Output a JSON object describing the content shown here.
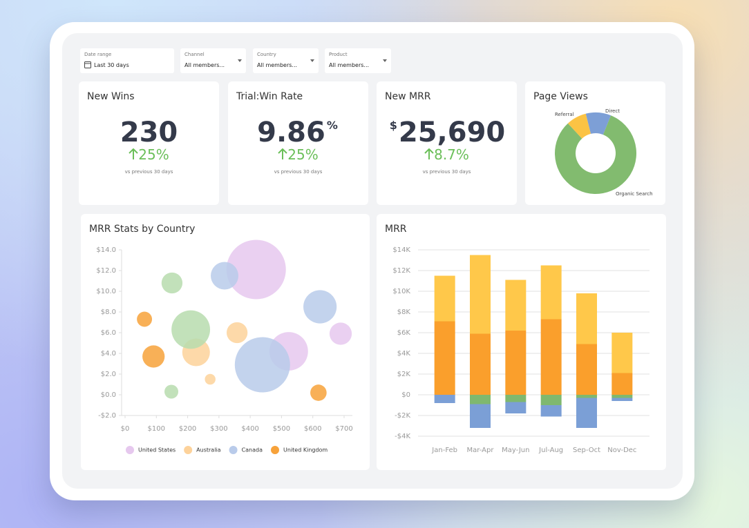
{
  "filters": [
    {
      "label": "Date range",
      "value": "Last 30 days"
    },
    {
      "label": "Channel",
      "value": "All members..."
    },
    {
      "label": "Country",
      "value": "All members..."
    },
    {
      "label": "Product",
      "value": "All members..."
    }
  ],
  "kpis": [
    {
      "title": "New Wins",
      "value": "230",
      "change": "25%",
      "note": "vs previous 30 days"
    },
    {
      "title": "Trial:Win Rate",
      "value": "9.86",
      "unit": "%",
      "change": "25%",
      "note": "vs previous 30 days"
    },
    {
      "title": "New MRR",
      "prefix": "$",
      "value": "25,690",
      "change": "8.7%",
      "note": "vs previous 30 days"
    }
  ],
  "chart_data": [
    {
      "type": "pie",
      "title": "Page Views",
      "donut": true,
      "categories": [
        "Direct",
        "Organic Search",
        "Referral"
      ],
      "values": [
        10,
        82,
        8
      ],
      "colors": [
        "#7d9fd6",
        "#82bb6f",
        "#fbc344"
      ]
    },
    {
      "type": "bubble",
      "title": "MRR Stats by Country",
      "xlim": [
        0,
        700
      ],
      "ylim": [
        -2,
        14
      ],
      "xticks": [
        {
          "value": 0,
          "label": "$0"
        },
        {
          "value": 100,
          "label": "$100"
        },
        {
          "value": 200,
          "label": "$200"
        },
        {
          "value": 300,
          "label": "$300"
        },
        {
          "value": 400,
          "label": "$400"
        },
        {
          "value": 500,
          "label": "$500"
        },
        {
          "value": 600,
          "label": "$600"
        },
        {
          "value": 700,
          "label": "$700"
        }
      ],
      "yticks": [
        {
          "value": -2,
          "label": "-$2.0"
        },
        {
          "value": 0,
          "label": "$0.0"
        },
        {
          "value": 2,
          "label": "$2.0"
        },
        {
          "value": 4,
          "label": "$4.0"
        },
        {
          "value": 6,
          "label": "$6.0"
        },
        {
          "value": 8,
          "label": "$8.0"
        },
        {
          "value": 10,
          "label": "$10.0"
        },
        {
          "value": 12,
          "label": "$12.0"
        },
        {
          "value": 14,
          "label": "$14.0"
        }
      ],
      "series": [
        {
          "name": "United States",
          "color": "#e6c8ee",
          "x": [
            419,
            523,
            689
          ],
          "y": [
            12.1,
            4.2,
            5.9
          ],
          "size": [
            185,
            78,
            26
          ]
        },
        {
          "name": "Australia",
          "color": "#fdd29a",
          "x": [
            358,
            227,
            272
          ],
          "y": [
            6.0,
            4.1,
            1.5
          ],
          "size": [
            23,
            40,
            6
          ]
        },
        {
          "name": "Canada",
          "color": "#b9cbea",
          "x": [
            318,
            623,
            439
          ],
          "y": [
            11.5,
            8.5,
            2.9
          ],
          "size": [
            40,
            58,
            160
          ]
        },
        {
          "name": "United Kingdom",
          "color": "#f7a23a",
          "x": [
            62,
            91,
            618
          ],
          "y": [
            7.3,
            3.7,
            0.2
          ],
          "size": [
            12,
            26,
            14
          ]
        },
        {
          "color": "#b7dcae",
          "x": [
            150,
            210,
            148
          ],
          "y": [
            10.8,
            6.3,
            0.3
          ],
          "size": [
            23,
            78,
            10
          ]
        }
      ]
    },
    {
      "type": "bar",
      "title": "MRR",
      "stacked": true,
      "grid": true,
      "categories": [
        "Jan-Feb",
        "Mar-Apr",
        "May-Jun",
        "Jul-Aug",
        "Sep-Oct",
        "Nov-Dec"
      ],
      "ylim": [
        -4000,
        14000
      ],
      "yticks": [
        {
          "value": -4000,
          "label": "-$4K"
        },
        {
          "value": -2000,
          "label": "-$2K"
        },
        {
          "value": 0,
          "label": "$0"
        },
        {
          "value": 2000,
          "label": "$2K"
        },
        {
          "value": 4000,
          "label": "$4K"
        },
        {
          "value": 6000,
          "label": "$6K"
        },
        {
          "value": 8000,
          "label": "$8K"
        },
        {
          "value": 10000,
          "label": "$10K"
        },
        {
          "value": 12000,
          "label": "$12K"
        },
        {
          "value": 14000,
          "label": "$14K"
        }
      ],
      "series": [
        {
          "color": "#fa9f2c",
          "values": [
            7100,
            5900,
            6200,
            7300,
            4900,
            2100
          ]
        },
        {
          "color": "#ffc84a",
          "values": [
            4400,
            7600,
            4900,
            5200,
            4900,
            3900
          ]
        },
        {
          "color": "#7fb86f",
          "values": [
            0,
            -900,
            -700,
            -1000,
            -300,
            -300
          ]
        },
        {
          "color": "#7b9fd6",
          "values": [
            -800,
            -2300,
            -1100,
            -1100,
            -2900,
            -300
          ]
        }
      ]
    }
  ]
}
